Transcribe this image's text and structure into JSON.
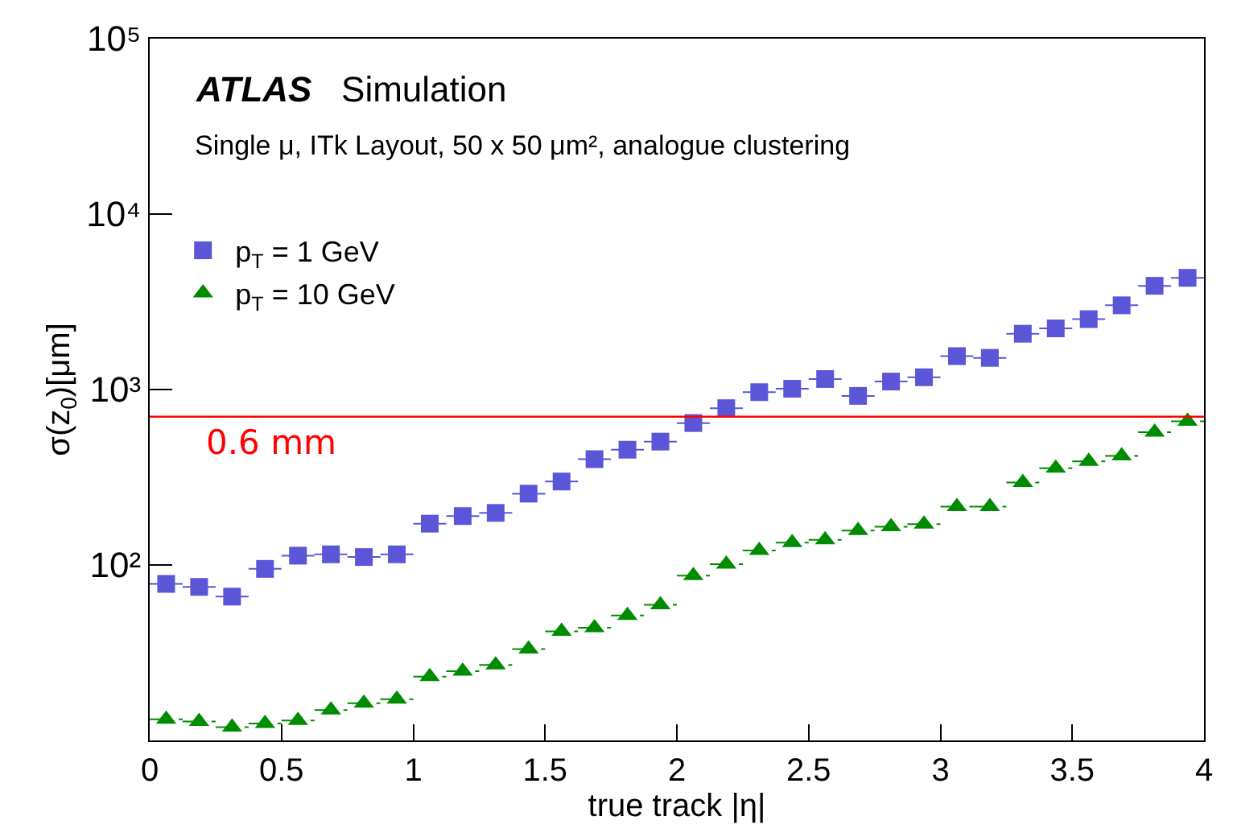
{
  "chart_data": {
    "type": "scatter",
    "title": "ATLAS Simulation",
    "subtitle": "Single μ, ITk Layout, 50 x 50 μm², analogue clustering",
    "xlabel": "true track |η|",
    "ylabel": "σ(z$_{0}$)[μm]",
    "x": [
      0.0625,
      0.1875,
      0.3125,
      0.4375,
      0.5625,
      0.6875,
      0.8125,
      0.9375,
      1.0625,
      1.1875,
      1.3125,
      1.4375,
      1.5625,
      1.6875,
      1.8125,
      1.9375,
      2.0625,
      2.1875,
      2.3125,
      2.4375,
      2.5625,
      2.6875,
      2.8125,
      2.9375,
      3.0625,
      3.1875,
      3.3125,
      3.4375,
      3.5625,
      3.6875,
      3.8125,
      3.9375
    ],
    "series": [
      {
        "name": "p$_{T}$ = 1 GeV",
        "color": "#5b55d8",
        "marker": "square",
        "values": [
          78,
          75,
          66,
          95,
          113,
          115,
          111,
          115,
          172,
          190,
          198,
          255,
          299,
          401,
          454,
          505,
          644,
          783,
          966,
          1010,
          1148,
          920,
          1110,
          1175,
          1550,
          1515,
          2080,
          2230,
          2520,
          3020,
          3900,
          4330
        ],
        "xerrors": [
          0.0625,
          0.0625,
          0.0625,
          0.0625,
          0.0625,
          0.0625,
          0.0625,
          0.0625,
          0.0625,
          0.0625,
          0.0625,
          0.0625,
          0.0625,
          0.0625,
          0.0625,
          0.0625,
          0.0625,
          0.0625,
          0.0625,
          0.0625,
          0.0625,
          0.0625,
          0.0625,
          0.0625,
          0.0625,
          0.0625,
          0.0625,
          0.0625,
          0.0625,
          0.0625,
          0.0625,
          0.0625
        ]
      },
      {
        "name": "p$_{T}$ = 10 GeV",
        "color": "#008c00",
        "marker": "triangle",
        "line_style": "dashed",
        "values": [
          13.2,
          12.8,
          11.9,
          12.5,
          13.0,
          14.9,
          16.3,
          17.2,
          23.1,
          24.8,
          26.9,
          33.2,
          41.8,
          43.9,
          51.5,
          59.3,
          87,
          101,
          121,
          134,
          139,
          157,
          165,
          171,
          215,
          215,
          295,
          356,
          390,
          418,
          571,
          658
        ],
        "xerrors": [
          0.0625,
          0.0625,
          0.0625,
          0.0625,
          0.0625,
          0.0625,
          0.0625,
          0.0625,
          0.0625,
          0.0625,
          0.0625,
          0.0625,
          0.0625,
          0.0625,
          0.0625,
          0.0625,
          0.0625,
          0.0625,
          0.0625,
          0.0625,
          0.0625,
          0.0625,
          0.0625,
          0.0625,
          0.0625,
          0.0625,
          0.0625,
          0.0625,
          0.0625,
          0.0625,
          0.0625,
          0.0625
        ]
      }
    ],
    "log": "y",
    "xlim": [
      0,
      4
    ],
    "xticks": [
      0,
      0.5,
      1,
      1.5,
      2,
      2.5,
      3,
      3.5,
      4
    ],
    "ylim": [
      10,
      100000
    ],
    "yticks": [
      {
        "value": 10,
        "label": null
      },
      {
        "value": 100,
        "label": "10²"
      },
      {
        "value": 1000,
        "label": "10³"
      },
      {
        "value": 10000,
        "label": "10⁴"
      },
      {
        "value": 100000,
        "label": "10⁵"
      }
    ],
    "ref_lines": [
      {
        "axis": "y",
        "value": 700,
        "label": "0.6 mm",
        "color": "#ff0000"
      }
    ],
    "legend": "top left"
  }
}
